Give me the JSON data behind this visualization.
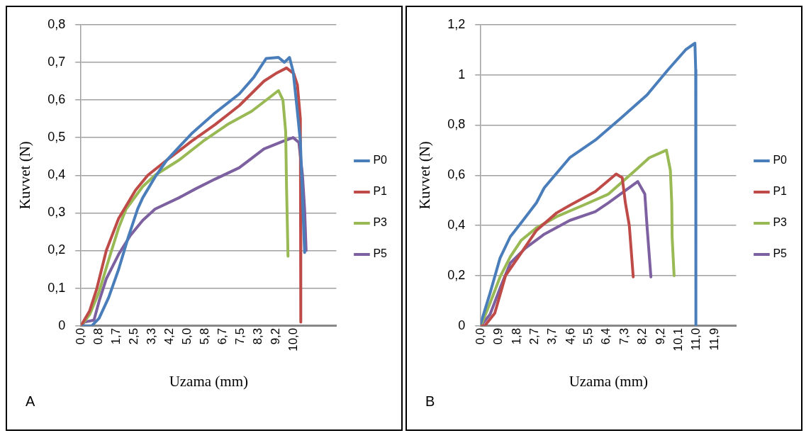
{
  "chart_data": [
    {
      "type": "line",
      "xlabel": "Uzama (mm)",
      "ylabel": "Kuvvet (N)",
      "annotations": [
        "A"
      ],
      "legend": "right",
      "grid": "y",
      "marker": "none",
      "line_style": "solid",
      "xlim": [
        0,
        12
      ],
      "xticks": [
        {
          "value": 0,
          "label": "0,0"
        },
        {
          "value": 0.833,
          "label": "0,8"
        },
        {
          "value": 1.667,
          "label": "1,7"
        },
        {
          "value": 2.5,
          "label": "2,5"
        },
        {
          "value": 3.333,
          "label": "3,3"
        },
        {
          "value": 4.167,
          "label": "4,2"
        },
        {
          "value": 5,
          "label": "5,0"
        },
        {
          "value": 5.833,
          "label": "5,8"
        },
        {
          "value": 6.667,
          "label": "6,7"
        },
        {
          "value": 7.5,
          "label": "7,5"
        },
        {
          "value": 8.333,
          "label": "8,3"
        },
        {
          "value": 9.167,
          "label": "9,2"
        },
        {
          "value": 10,
          "label": "10,0"
        }
      ],
      "ylim": [
        0,
        0.8
      ],
      "yticks": [
        {
          "value": 0,
          "label": "0"
        },
        {
          "value": 0.1,
          "label": "0,1"
        },
        {
          "value": 0.2,
          "label": "0,2"
        },
        {
          "value": 0.3,
          "label": "0,3"
        },
        {
          "value": 0.4,
          "label": "0,4"
        },
        {
          "value": 0.5,
          "label": "0,5"
        },
        {
          "value": 0.6,
          "label": "0,6"
        },
        {
          "value": 0.7,
          "label": "0,7"
        },
        {
          "value": 0.8,
          "label": "0,8"
        }
      ],
      "series": [
        {
          "name": "P0",
          "color": "#4a7ebb",
          "x": [
            0.1,
            0.51,
            0.85,
            1.3,
            1.77,
            2.22,
            2.66,
            2.9,
            3.48,
            4.03,
            5.19,
            6.31,
            7.44,
            8.12,
            8.7,
            9.28,
            9.56,
            9.8,
            9.97,
            10.14,
            10.31,
            10.51
          ],
          "values": [
            0,
            0,
            0.02,
            0.075,
            0.15,
            0.235,
            0.31,
            0.34,
            0.395,
            0.44,
            0.51,
            0.566,
            0.616,
            0.66,
            0.71,
            0.713,
            0.7,
            0.713,
            0.676,
            0.585,
            0.49,
            0.195
          ]
        },
        {
          "name": "P1",
          "color": "#be4b48",
          "x": [
            0,
            0.41,
            0.75,
            1.19,
            1.77,
            2.56,
            3.14,
            4.03,
            5.19,
            6.31,
            7.44,
            8.6,
            9.15,
            9.66,
            10,
            10.17,
            10.31,
            10.32,
            10.33
          ],
          "values": [
            0,
            0.04,
            0.1,
            0.2,
            0.285,
            0.36,
            0.4,
            0.44,
            0.49,
            0.535,
            0.585,
            0.65,
            0.67,
            0.685,
            0.67,
            0.64,
            0.55,
            0.29,
            0.01
          ]
        },
        {
          "name": "P3",
          "color": "#98b954",
          "x": [
            0,
            0.41,
            0.85,
            1.3,
            1.77,
            2.12,
            2.9,
            3.48,
            4.6,
            5.73,
            6.89,
            8.02,
            8.94,
            9.28,
            9.49,
            9.62,
            9.66,
            9.73
          ],
          "values": [
            0,
            0.03,
            0.09,
            0.175,
            0.26,
            0.31,
            0.37,
            0.4,
            0.44,
            0.49,
            0.535,
            0.57,
            0.61,
            0.625,
            0.6,
            0.515,
            0.37,
            0.185
          ]
        },
        {
          "name": "P5",
          "color": "#7d60a0",
          "x": [
            0,
            0.17,
            0.61,
            0.85,
            1.19,
            1.77,
            2.32,
            2.9,
            3.48,
            4.6,
            5.39,
            6.31,
            7.44,
            8.6,
            9.49,
            9.97,
            10.24,
            10.41,
            10.51,
            10.58
          ],
          "values": [
            0,
            0.01,
            0.015,
            0.065,
            0.125,
            0.19,
            0.24,
            0.28,
            0.31,
            0.34,
            0.364,
            0.39,
            0.42,
            0.47,
            0.49,
            0.5,
            0.487,
            0.4,
            0.31,
            0.2
          ]
        }
      ]
    },
    {
      "type": "line",
      "xlabel": "Uzama (mm)",
      "ylabel": "Kuvvet (N)",
      "annotations": [
        "B"
      ],
      "legend": "right",
      "grid": "y",
      "marker": "none",
      "line_style": "solid",
      "xlim": [
        0,
        13
      ],
      "xticks": [
        {
          "value": 0,
          "label": "0,0"
        },
        {
          "value": 0.915,
          "label": "0,9"
        },
        {
          "value": 1.831,
          "label": "1,8"
        },
        {
          "value": 2.746,
          "label": "2,7"
        },
        {
          "value": 3.662,
          "label": "3,7"
        },
        {
          "value": 4.577,
          "label": "4,6"
        },
        {
          "value": 5.492,
          "label": "5,5"
        },
        {
          "value": 6.408,
          "label": "6,4"
        },
        {
          "value": 7.323,
          "label": "7,3"
        },
        {
          "value": 8.238,
          "label": "8,2"
        },
        {
          "value": 9.154,
          "label": "9,2"
        },
        {
          "value": 10.069,
          "label": "10,1"
        },
        {
          "value": 10.985,
          "label": "11,0"
        },
        {
          "value": 11.9,
          "label": "11,9"
        }
      ],
      "ylim": [
        0,
        1.2
      ],
      "yticks": [
        {
          "value": 0,
          "label": "0"
        },
        {
          "value": 0.2,
          "label": "0,2"
        },
        {
          "value": 0.4,
          "label": "0,4"
        },
        {
          "value": 0.6,
          "label": "0,6"
        },
        {
          "value": 0.8,
          "label": "0,8"
        },
        {
          "value": 1,
          "label": "1"
        },
        {
          "value": 1.2,
          "label": "1,2"
        }
      ],
      "series": [
        {
          "name": "P0",
          "color": "#4a7ebb",
          "x": [
            0,
            0.47,
            0.98,
            1.5,
            2.05,
            2.83,
            3.23,
            4.53,
            5.83,
            7.17,
            8.46,
            9.53,
            10.43,
            10.9,
            10.94,
            10.95
          ],
          "values": [
            0.01,
            0.13,
            0.27,
            0.355,
            0.41,
            0.49,
            0.55,
            0.67,
            0.74,
            0.83,
            0.92,
            1.02,
            1.1,
            1.126,
            1.02,
            0
          ]
        },
        {
          "name": "P1",
          "color": "#be4b48",
          "x": [
            0,
            0.2,
            0.71,
            1.26,
            2.05,
            2.83,
            3.86,
            4.53,
            5.83,
            6.89,
            7.2,
            7.36,
            7.56,
            7.76
          ],
          "values": [
            0,
            0,
            0.05,
            0.2,
            0.29,
            0.38,
            0.45,
            0.48,
            0.535,
            0.605,
            0.59,
            0.49,
            0.4,
            0.195
          ]
        },
        {
          "name": "P3",
          "color": "#98b954",
          "x": [
            0,
            0.47,
            0.98,
            1.5,
            2.05,
            2.83,
            3.86,
            5.2,
            6.5,
            7.8,
            8.58,
            9.45,
            9.65,
            9.72,
            9.74,
            9.84
          ],
          "values": [
            0,
            0.09,
            0.195,
            0.275,
            0.34,
            0.39,
            0.435,
            0.48,
            0.525,
            0.615,
            0.67,
            0.7,
            0.62,
            0.49,
            0.355,
            0.2
          ]
        },
        {
          "name": "P5",
          "color": "#7d60a0",
          "x": [
            0,
            0.47,
            0.98,
            1.5,
            2.28,
            3.23,
            4.53,
            5.83,
            6.5,
            7.99,
            8.35,
            8.46,
            8.66
          ],
          "values": [
            0,
            0.045,
            0.15,
            0.25,
            0.31,
            0.365,
            0.42,
            0.455,
            0.49,
            0.575,
            0.525,
            0.4,
            0.195
          ]
        }
      ]
    }
  ]
}
